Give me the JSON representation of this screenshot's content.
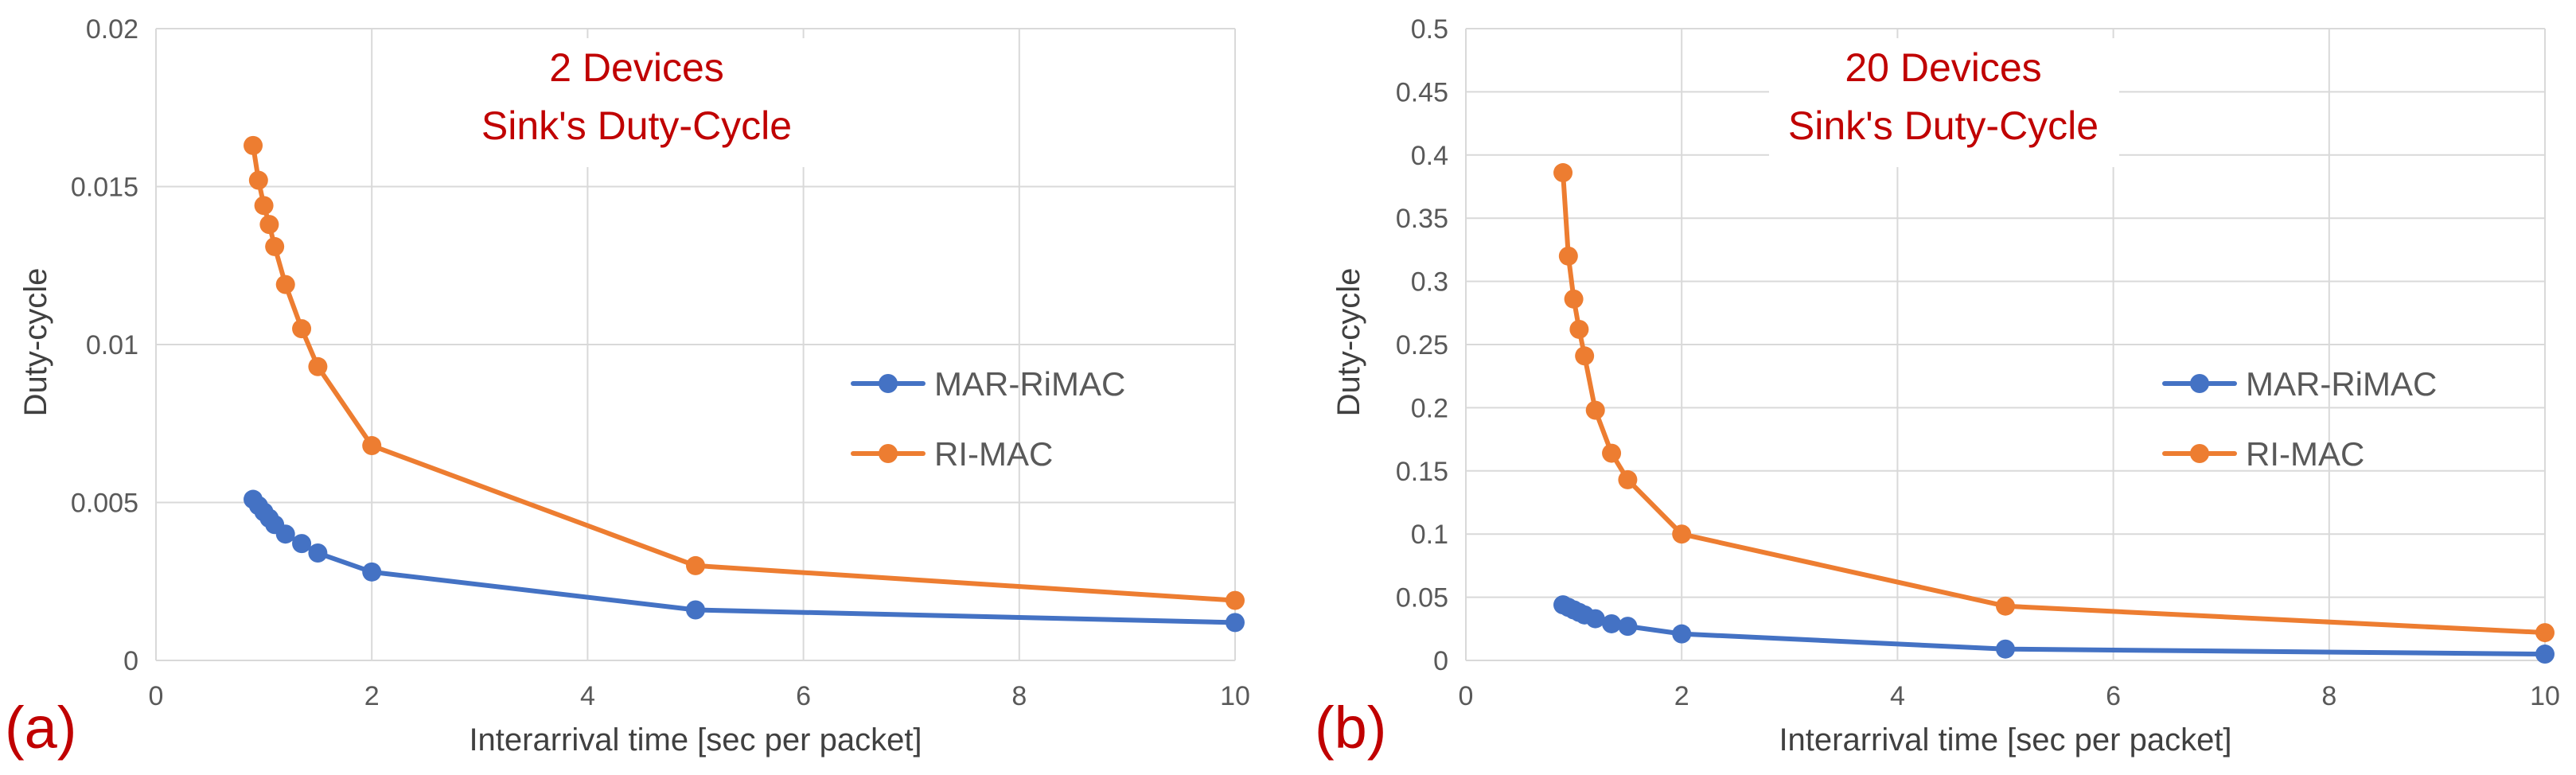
{
  "colors": {
    "mar_rimac": "#4472c4",
    "ri_mac": "#ed7d31",
    "title": "#c00000",
    "panel_label": "#c00000",
    "grid": "#d9d9d9",
    "tick": "#595959"
  },
  "chart_data": [
    {
      "type": "line",
      "panel_label": "(a)",
      "title_line1": "2 Devices",
      "title_line2": "Sink's Duty-Cycle",
      "xlabel": "Interarrival time [sec per packet]",
      "ylabel": "Duty-cycle",
      "xlim": [
        0,
        10
      ],
      "ylim": [
        0,
        0.02
      ],
      "xticks": [
        0,
        2,
        4,
        6,
        8,
        10
      ],
      "xtick_labels": [
        "0",
        "2",
        "4",
        "6",
        "8",
        "10"
      ],
      "yticks": [
        0,
        0.005,
        0.01,
        0.015,
        0.02
      ],
      "ytick_labels": [
        "0",
        "0.005",
        "0.01",
        "0.015",
        "0.02"
      ],
      "legend_position": "right",
      "series": [
        {
          "name": "MAR-RiMAC",
          "color": "#4472c4",
          "x": [
            0.9,
            0.95,
            1.0,
            1.05,
            1.1,
            1.2,
            1.35,
            1.5,
            2,
            5,
            10
          ],
          "y": [
            0.0051,
            0.0049,
            0.0047,
            0.0045,
            0.0043,
            0.004,
            0.0037,
            0.0034,
            0.0028,
            0.0016,
            0.0012
          ]
        },
        {
          "name": "RI-MAC",
          "color": "#ed7d31",
          "x": [
            0.9,
            0.95,
            1.0,
            1.05,
            1.1,
            1.2,
            1.35,
            1.5,
            2,
            5,
            10
          ],
          "y": [
            0.0163,
            0.0152,
            0.0144,
            0.0138,
            0.0131,
            0.0119,
            0.0105,
            0.0093,
            0.0068,
            0.003,
            0.0019
          ]
        }
      ]
    },
    {
      "type": "line",
      "panel_label": "(b)",
      "title_line1": "20 Devices",
      "title_line2": "Sink's Duty-Cycle",
      "xlabel": "Interarrival time [sec per packet]",
      "ylabel": "Duty-cycle",
      "xlim": [
        0,
        10
      ],
      "ylim": [
        0,
        0.5
      ],
      "xticks": [
        0,
        2,
        4,
        6,
        8,
        10
      ],
      "xtick_labels": [
        "0",
        "2",
        "4",
        "6",
        "8",
        "10"
      ],
      "yticks": [
        0,
        0.05,
        0.1,
        0.15,
        0.2,
        0.25,
        0.3,
        0.35,
        0.4,
        0.45,
        0.5
      ],
      "ytick_labels": [
        "0",
        "0.05",
        "0.1",
        "0.15",
        "0.2",
        "0.25",
        "0.3",
        "0.35",
        "0.4",
        "0.45",
        "0.5"
      ],
      "legend_position": "right",
      "series": [
        {
          "name": "MAR-RiMAC",
          "color": "#4472c4",
          "x": [
            0.9,
            0.95,
            1.0,
            1.05,
            1.1,
            1.2,
            1.35,
            1.5,
            2,
            5,
            10
          ],
          "y": [
            0.044,
            0.042,
            0.04,
            0.038,
            0.036,
            0.033,
            0.029,
            0.027,
            0.021,
            0.009,
            0.005
          ]
        },
        {
          "name": "RI-MAC",
          "color": "#ed7d31",
          "x": [
            0.9,
            0.95,
            1.0,
            1.05,
            1.1,
            1.2,
            1.35,
            1.5,
            2,
            5,
            10
          ],
          "y": [
            0.386,
            0.32,
            0.286,
            0.262,
            0.241,
            0.198,
            0.164,
            0.143,
            0.1,
            0.043,
            0.022
          ]
        }
      ]
    }
  ]
}
